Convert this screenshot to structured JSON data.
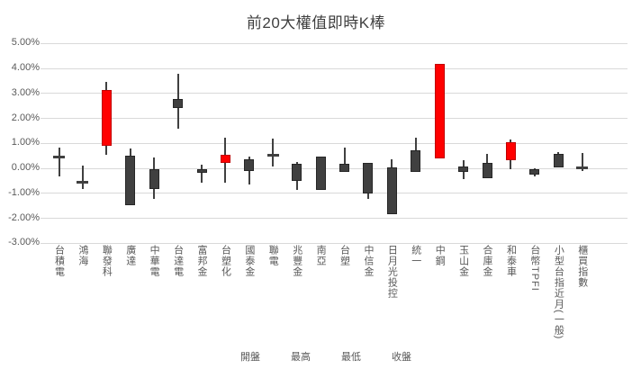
{
  "chart_data": {
    "type": "candlestick",
    "title": "前20大權值即時K棒",
    "xlabel": "",
    "ylabel": "",
    "ylim": [
      -3,
      5
    ],
    "y_ticks": [
      "5.00%",
      "4.00%",
      "3.00%",
      "2.00%",
      "1.00%",
      "0.00%",
      "-1.00%",
      "-2.00%",
      "-3.00%"
    ],
    "grid": true,
    "legend": [
      "開盤",
      "最高",
      "最低",
      "收盤"
    ],
    "legend_position": "bottom",
    "up_color": "#ff0000",
    "down_color": "#404040",
    "wick_color": "#404040",
    "unit": "%",
    "series": [
      {
        "name": "台積電",
        "open": 0.48,
        "high": 0.8,
        "low": -0.36,
        "close": 0.48
      },
      {
        "name": "鴻海",
        "open": -0.54,
        "high": 0.1,
        "low": -0.85,
        "close": -0.54
      },
      {
        "name": "聯發科",
        "open": 0.9,
        "high": 3.43,
        "low": 0.51,
        "close": 3.13
      },
      {
        "name": "廣達",
        "open": 0.48,
        "high": 0.78,
        "low": -1.5,
        "close": -1.5
      },
      {
        "name": "中華電",
        "open": -0.04,
        "high": 0.42,
        "low": -1.26,
        "close": -0.84
      },
      {
        "name": "台達電",
        "open": 2.77,
        "high": 3.76,
        "low": 1.57,
        "close": 2.41
      },
      {
        "name": "富邦金",
        "open": -0.04,
        "high": 0.14,
        "low": -0.58,
        "close": -0.2
      },
      {
        "name": "台塑化",
        "open": 0.18,
        "high": 1.2,
        "low": -0.58,
        "close": 0.54
      },
      {
        "name": "國泰金",
        "open": 0.36,
        "high": 0.46,
        "low": -0.66,
        "close": -0.12
      },
      {
        "name": "聯電",
        "open": 0.55,
        "high": 1.18,
        "low": 0.06,
        "close": 0.55
      },
      {
        "name": "兆豐金",
        "open": 0.18,
        "high": 0.24,
        "low": -0.9,
        "close": -0.54
      },
      {
        "name": "南亞",
        "open": 0.46,
        "high": 0.46,
        "low": -0.9,
        "close": -0.9
      },
      {
        "name": "台塑",
        "open": 0.18,
        "high": 0.8,
        "low": -0.18,
        "close": -0.18
      },
      {
        "name": "中信金",
        "open": 0.2,
        "high": 0.2,
        "low": -1.26,
        "close": -1.02
      },
      {
        "name": "日月光投控",
        "open": 0.02,
        "high": 0.35,
        "low": -1.86,
        "close": -1.86
      },
      {
        "name": "統一",
        "open": 0.69,
        "high": 1.2,
        "low": -0.18,
        "close": -0.18
      },
      {
        "name": "中鋼",
        "open": 0.39,
        "high": 4.15,
        "low": 0.39,
        "close": 4.15
      },
      {
        "name": "玉山金",
        "open": 0.06,
        "high": 0.3,
        "low": -0.46,
        "close": -0.16
      },
      {
        "name": "合庫金",
        "open": 0.21,
        "high": 0.57,
        "low": -0.42,
        "close": -0.42
      },
      {
        "name": "和泰車",
        "open": 0.3,
        "high": 1.14,
        "low": -0.06,
        "close": 1.03
      },
      {
        "name": "台幣TPFI",
        "open": -0.06,
        "high": 0.0,
        "low": -0.36,
        "close": -0.27
      },
      {
        "name": "小型台指近月(一般)",
        "open": 0.55,
        "high": 0.63,
        "low": 0.0,
        "close": 0.0
      },
      {
        "name": "櫃買指數",
        "open": 0.04,
        "high": 0.6,
        "low": -0.12,
        "close": 0.04
      }
    ]
  }
}
